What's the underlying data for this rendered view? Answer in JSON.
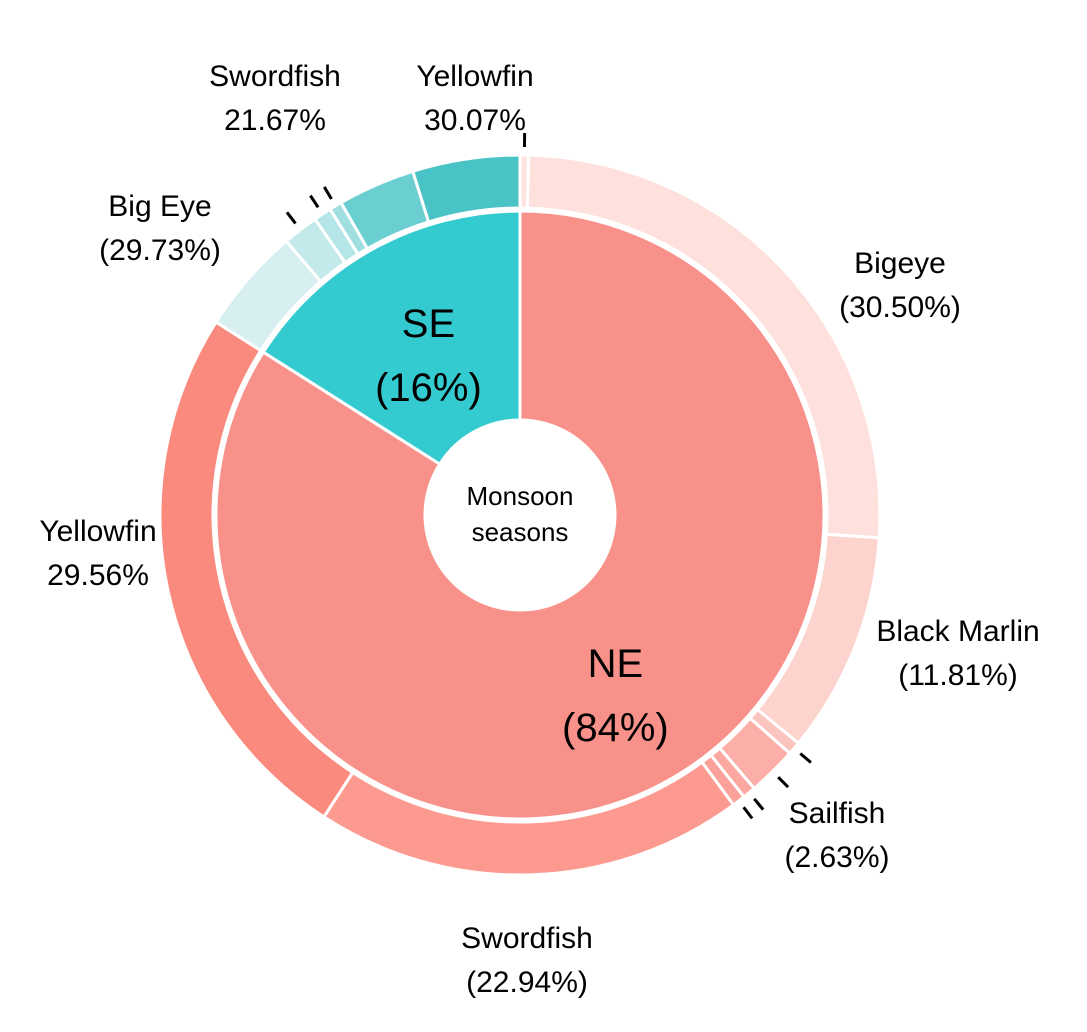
{
  "chart_data": {
    "type": "sunburst",
    "center_label": "Monsoon seasons",
    "groups": [
      {
        "name": "NE",
        "value": 84,
        "value_label": "(84%)",
        "color": "#f8918a",
        "children": {
          "categories": [
            null,
            "Bigeye",
            "Black Marlin",
            null,
            "Sailfish",
            null,
            null,
            "Swordfish",
            "Yellowfin"
          ],
          "values": [
            0.46,
            30.5,
            11.81,
            0.7,
            2.63,
            0.7,
            0.7,
            22.94,
            29.56
          ],
          "value_labels": [
            null,
            "(30.50%)",
            "(11.81%)",
            null,
            "(2.63%)",
            null,
            null,
            "(22.94%)",
            "29.56%"
          ],
          "colors": [
            "#fde4e1",
            "#fee0dc",
            "#fdd3ce",
            "#fcc4be",
            "#fcafa8",
            "#fca79f",
            "#fca199",
            "#fc9a90",
            "#fa8a7e"
          ]
        }
      },
      {
        "name": "SE",
        "value": 16,
        "value_label": "(16%)",
        "color": "#33cbd0",
        "children": {
          "categories": [
            "Big Eye",
            null,
            null,
            null,
            "Swordfish",
            "Yellowfin"
          ],
          "values": [
            29.73,
            10.0,
            5.0,
            3.53,
            21.67,
            30.07
          ],
          "value_labels": [
            "(29.73%)",
            null,
            null,
            null,
            "21.67%",
            "30.07%"
          ],
          "colors": [
            "#d7eff0",
            "#c4e9ea",
            "#b5e6e7",
            "#a0dfe0",
            "#6bcfd2",
            "#49c3c6"
          ]
        }
      }
    ]
  }
}
